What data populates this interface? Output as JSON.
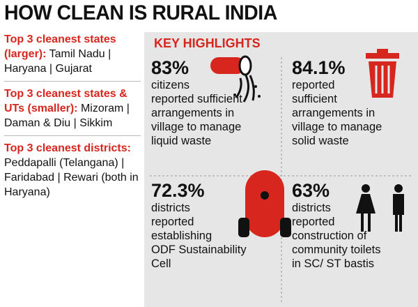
{
  "header": {
    "title": "HOW CLEAN IS RURAL INDIA"
  },
  "sidebar": [
    {
      "heading": "Top 3 cleanest states (larger):",
      "text": "Tamil Nadu | Haryana | Gujarat"
    },
    {
      "heading": "Top 3 cleanest states & UTs (smaller):",
      "text": "Mizoram | Daman & Diu | Sikkim"
    },
    {
      "heading": "Top 3 cleanest districts:",
      "text": "Peddapalli (Telangana) | Faridabad | Rewari (both in Haryana)"
    }
  ],
  "highlights": {
    "title": "KEY HIGHLIGHTS",
    "items": [
      {
        "figure": "83%",
        "lines": [
          "citizens",
          "reported sufficient",
          "arrangements in",
          "village to manage",
          "liquid waste"
        ]
      },
      {
        "figure": "84.1%",
        "lines": [
          "reported",
          "sufficient",
          "arrangements in",
          "village to manage",
          "solid waste"
        ]
      },
      {
        "figure": "72.3%",
        "lines": [
          "districts",
          "reported",
          "establishing",
          "ODF Sustainability",
          "Cell"
        ]
      },
      {
        "figure": "63%",
        "lines": [
          "districts",
          "reported",
          "construction of",
          "community toilets",
          "in SC/ ST bastis"
        ]
      }
    ]
  }
}
